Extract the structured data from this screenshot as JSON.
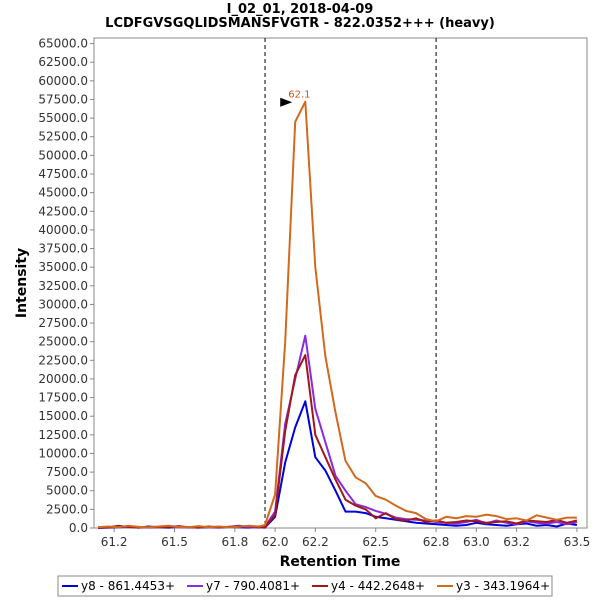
{
  "chart_data": {
    "type": "line",
    "title": "I_02_01, 2018-04-09",
    "subtitle": "LCDFGVSGQLIDSMANSFVGTR - 822.0352+++ (heavy)",
    "xlabel": "Retention Time",
    "ylabel": "Intensity",
    "xlim": [
      61.1,
      63.55
    ],
    "ylim": [
      0,
      65750
    ],
    "x_ticks": [
      61.2,
      61.5,
      61.8,
      62.0,
      62.2,
      62.5,
      62.8,
      63.0,
      63.2,
      63.5
    ],
    "x_tick_labels": [
      "61.2",
      "61.5",
      "61.8",
      "62.0",
      "62.2",
      "62.5",
      "62.8",
      "63.0",
      "63.2",
      "63.5"
    ],
    "y_ticks": [
      0,
      2500,
      5000,
      7500,
      10000,
      12500,
      15000,
      17500,
      20000,
      22500,
      25000,
      27500,
      30000,
      32500,
      35000,
      37500,
      40000,
      42500,
      45000,
      47500,
      50000,
      52500,
      55000,
      57500,
      60000,
      62500,
      65000
    ],
    "y_tick_labels": [
      "0.0",
      "2500.0",
      "5000.0",
      "7500.0",
      "10000.0",
      "12500.0",
      "15000.0",
      "17500.0",
      "20000.0",
      "22500.0",
      "25000.0",
      "27500.0",
      "30000.0",
      "32500.0",
      "35000.0",
      "37500.0",
      "40000.0",
      "42500.0",
      "45000.0",
      "47500.0",
      "50000.0",
      "52500.0",
      "55000.0",
      "57500.0",
      "60000.0",
      "62500.0",
      "65000.0"
    ],
    "grid": false,
    "legend_position": "bottom",
    "vlines": [
      61.95,
      62.8
    ],
    "annotation": {
      "label": "62.1",
      "x": 62.1,
      "y": 57200,
      "color": "#c75a14"
    },
    "series": [
      {
        "name": "y8 - 861.4453+",
        "color": "#0000dd",
        "x": [
          61.12,
          61.17,
          61.22,
          61.27,
          61.32,
          61.37,
          61.42,
          61.47,
          61.52,
          61.57,
          61.62,
          61.67,
          61.72,
          61.77,
          61.82,
          61.87,
          61.92,
          61.95,
          62.0,
          62.05,
          62.1,
          62.15,
          62.2,
          62.25,
          62.3,
          62.35,
          62.4,
          62.45,
          62.5,
          62.55,
          62.6,
          62.65,
          62.7,
          62.75,
          62.8,
          62.85,
          62.9,
          62.95,
          63.0,
          63.05,
          63.1,
          63.15,
          63.2,
          63.25,
          63.3,
          63.35,
          63.4,
          63.45,
          63.5
        ],
        "y": [
          0,
          50,
          100,
          150,
          50,
          200,
          100,
          50,
          150,
          100,
          50,
          100,
          50,
          150,
          100,
          50,
          100,
          50,
          1500,
          8800,
          13500,
          17000,
          9500,
          7700,
          5000,
          2200,
          2200,
          2000,
          1500,
          1300,
          1100,
          900,
          700,
          600,
          500,
          400,
          300,
          400,
          700,
          500,
          400,
          300,
          500,
          600,
          300,
          400,
          200,
          600,
          400
        ]
      },
      {
        "name": "y7 - 790.4081+",
        "color": "#8a2be2",
        "x": [
          61.12,
          61.17,
          61.22,
          61.27,
          61.32,
          61.37,
          61.42,
          61.47,
          61.52,
          61.57,
          61.62,
          61.67,
          61.72,
          61.77,
          61.82,
          61.87,
          61.92,
          61.95,
          62.0,
          62.05,
          62.1,
          62.15,
          62.2,
          62.25,
          62.3,
          62.35,
          62.4,
          62.45,
          62.5,
          62.55,
          62.6,
          62.65,
          62.7,
          62.75,
          62.8,
          62.85,
          62.9,
          62.95,
          63.0,
          63.05,
          63.1,
          63.15,
          63.2,
          63.25,
          63.3,
          63.35,
          63.4,
          63.45,
          63.5
        ],
        "y": [
          50,
          100,
          250,
          100,
          150,
          50,
          100,
          200,
          100,
          50,
          150,
          100,
          100,
          150,
          300,
          100,
          50,
          200,
          2200,
          14000,
          20000,
          25800,
          16000,
          11500,
          7000,
          5000,
          3200,
          2800,
          2300,
          1900,
          1400,
          1200,
          1100,
          1000,
          800,
          700,
          600,
          800,
          1100,
          600,
          1000,
          700,
          500,
          900,
          700,
          600,
          800,
          500,
          800
        ]
      },
      {
        "name": "y4 - 442.2648+",
        "color": "#a01818",
        "x": [
          61.12,
          61.17,
          61.22,
          61.27,
          61.32,
          61.37,
          61.42,
          61.47,
          61.52,
          61.57,
          61.62,
          61.67,
          61.72,
          61.77,
          61.82,
          61.87,
          61.92,
          61.95,
          62.0,
          62.05,
          62.1,
          62.15,
          62.2,
          62.25,
          62.3,
          62.35,
          62.4,
          62.45,
          62.5,
          62.55,
          62.6,
          62.65,
          62.7,
          62.75,
          62.8,
          62.85,
          62.9,
          62.95,
          63.0,
          63.05,
          63.1,
          63.15,
          63.2,
          63.25,
          63.3,
          63.35,
          63.4,
          63.45,
          63.5
        ],
        "y": [
          100,
          50,
          300,
          150,
          50,
          100,
          100,
          150,
          250,
          100,
          50,
          200,
          100,
          150,
          200,
          250,
          100,
          100,
          1800,
          13000,
          20500,
          23200,
          12500,
          9500,
          6500,
          3800,
          3000,
          2500,
          1300,
          2000,
          1200,
          1000,
          1300,
          800,
          1000,
          700,
          800,
          1000,
          900,
          700,
          800,
          900,
          600,
          1000,
          900,
          800,
          1100,
          700,
          1000
        ]
      },
      {
        "name": "y3 - 343.1964+",
        "color": "#d2691e",
        "x": [
          61.12,
          61.17,
          61.22,
          61.27,
          61.32,
          61.37,
          61.42,
          61.47,
          61.52,
          61.57,
          61.62,
          61.67,
          61.72,
          61.77,
          61.82,
          61.87,
          61.92,
          61.95,
          62.0,
          62.05,
          62.1,
          62.15,
          62.2,
          62.25,
          62.3,
          62.35,
          62.4,
          62.45,
          62.5,
          62.55,
          62.6,
          62.65,
          62.7,
          62.75,
          62.8,
          62.85,
          62.9,
          62.95,
          63.0,
          63.05,
          63.1,
          63.15,
          63.2,
          63.25,
          63.3,
          63.35,
          63.4,
          63.45,
          63.5
        ],
        "y": [
          100,
          200,
          100,
          300,
          150,
          100,
          200,
          300,
          150,
          100,
          250,
          100,
          200,
          100,
          150,
          300,
          200,
          400,
          4500,
          25000,
          54500,
          57200,
          35000,
          23000,
          15500,
          9000,
          6800,
          6000,
          4300,
          3800,
          3000,
          2300,
          2000,
          1200,
          900,
          1500,
          1300,
          1600,
          1500,
          1800,
          1600,
          1200,
          1300,
          1000,
          1700,
          1400,
          1100,
          1400,
          1400
        ]
      }
    ]
  }
}
